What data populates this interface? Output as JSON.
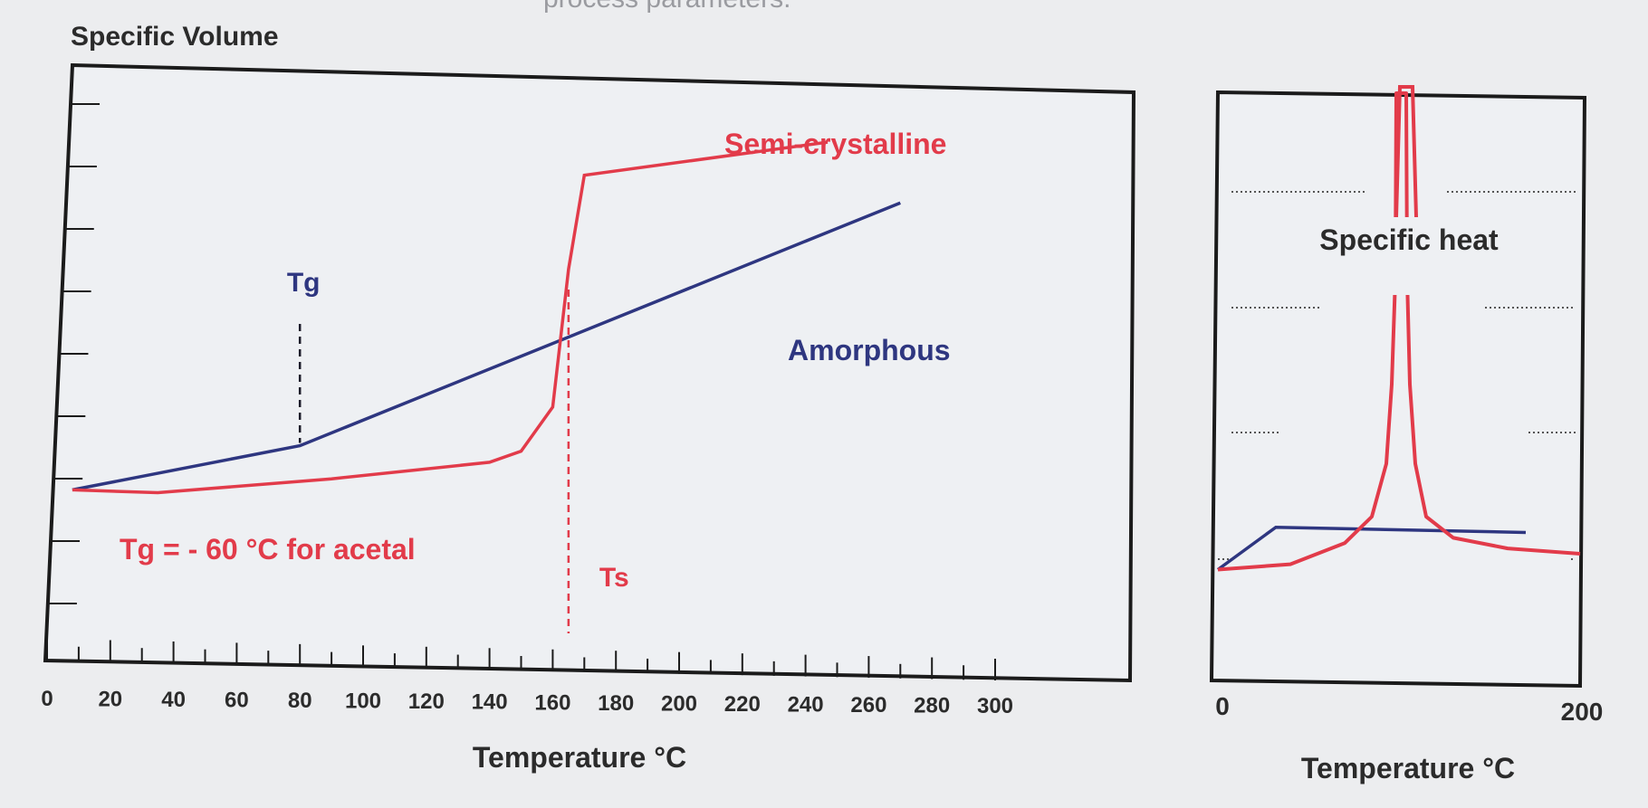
{
  "header_fragment": "process parameters.",
  "chart_data": [
    {
      "type": "line",
      "ylabel": "Specific Volume",
      "xlabel": "Temperature °C",
      "xlim": [
        0,
        300
      ],
      "x_ticks": [
        0,
        20,
        40,
        60,
        80,
        100,
        120,
        140,
        160,
        180,
        200,
        220,
        240,
        260,
        280,
        300
      ],
      "series": [
        {
          "name": "Amorphous",
          "color": "#2e3680",
          "points": [
            [
              8,
              0.26
            ],
            [
              80,
              0.34
            ],
            [
              270,
              0.78
            ]
          ]
        },
        {
          "name": "Semi-crystalline",
          "color": "#e23b4a",
          "points": [
            [
              8,
              0.26
            ],
            [
              35,
              0.255
            ],
            [
              90,
              0.28
            ],
            [
              140,
              0.31
            ],
            [
              150,
              0.33
            ],
            [
              160,
              0.41
            ],
            [
              165,
              0.66
            ],
            [
              170,
              0.83
            ],
            [
              247,
              0.89
            ]
          ]
        }
      ],
      "annotations": {
        "tg": {
          "label": "Tg",
          "x": 80,
          "color": "#2e3680"
        },
        "ts": {
          "label": "Ts",
          "x": 165,
          "color": "#e23b4a"
        },
        "note": {
          "text": "Tg =  - 60 °C for acetal",
          "color": "#e23b4a"
        }
      }
    },
    {
      "type": "line",
      "ylabel": "Specific heat",
      "xlabel": "Temperature °C",
      "xlim": [
        0,
        200
      ],
      "x_tick_labels": [
        "0",
        "200"
      ],
      "series": [
        {
          "name": "Amorphous",
          "color": "#2e3680",
          "points": [
            [
              0,
              0.1
            ],
            [
              32,
              0.18
            ],
            [
              170,
              0.17
            ]
          ]
        },
        {
          "name": "Semi-crystalline",
          "color": "#e23b4a",
          "points": [
            [
              0,
              0.1
            ],
            [
              40,
              0.11
            ],
            [
              70,
              0.15
            ],
            [
              85,
              0.2
            ],
            [
              93,
              0.3
            ],
            [
              96,
              0.45
            ],
            [
              98,
              0.65
            ],
            [
              98.5,
              1.0
            ],
            [
              104,
              1.0
            ],
            [
              104.5,
              0.65
            ],
            [
              106,
              0.45
            ],
            [
              109,
              0.3
            ],
            [
              115,
              0.2
            ],
            [
              130,
              0.16
            ],
            [
              160,
              0.14
            ],
            [
              200,
              0.13
            ]
          ]
        }
      ]
    }
  ]
}
